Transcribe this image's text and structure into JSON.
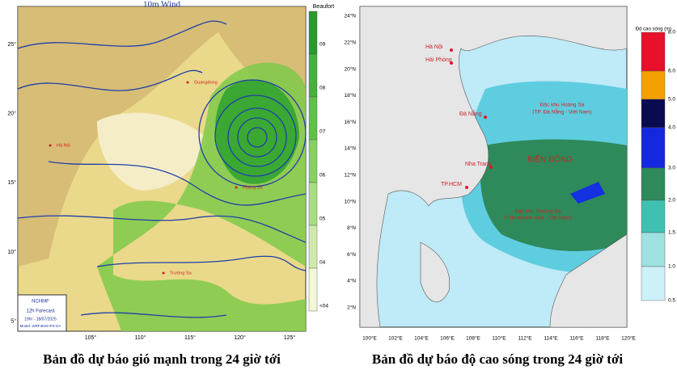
{
  "wind_map": {
    "title": "10m Wind",
    "scale_title": "Beaufort",
    "scale_ticks": [
      "09",
      "08",
      "07",
      "06",
      "05",
      "04",
      "<04"
    ],
    "lat_labels": [
      "25°",
      "20°",
      "15°",
      "10°",
      "5°"
    ],
    "lon_labels": [
      "105°",
      "110°",
      "115°",
      "120°",
      "125°"
    ],
    "logo": "NCHMF",
    "forecast": "12h Forecast",
    "time": "19hr - 18/07/2025",
    "model": "Model: WRF3KM-IFS-GA",
    "places": [
      "Guangdong",
      "Hà Nội",
      "Hoàng Sa",
      "Trường Sa"
    ],
    "caption": "Bản đồ dự báo gió mạnh trong 24 giờ tới"
  },
  "wave_map": {
    "scale_title": "Độ cao sóng (m)",
    "scale_ticks": [
      "8.0",
      "6.0",
      "5.0",
      "4.0",
      "3.0",
      "2.0",
      "1.5",
      "1.0",
      "0.5"
    ],
    "lat_labels": [
      "24°N",
      "22°N",
      "20°N",
      "18°N",
      "16°N",
      "14°N",
      "12°N",
      "10°N",
      "8°N",
      "6°N",
      "4°N",
      "2°N"
    ],
    "lon_labels": [
      "100°E",
      "102°E",
      "104°E",
      "106°E",
      "108°E",
      "110°E",
      "112°E",
      "114°E",
      "116°E",
      "118°E",
      "120°E"
    ],
    "places": [
      "Hà Nội",
      "Hải Phòng",
      "Đà Nẵng",
      "Nha Trang",
      "TP.HCM"
    ],
    "sea_name": "BIỂN ĐÔNG",
    "paracel": "Đặc khu Hoàng Sa",
    "paracel_note": "(TP. Đà Nẵng - Việt Nam)",
    "spratly": "Đặc khu Trường Sa",
    "spratly_note": "(Tỉnh Khánh Hòa - Việt Nam)",
    "caption": "Bản đồ dự báo độ cao sóng trong 24 giờ tới"
  }
}
